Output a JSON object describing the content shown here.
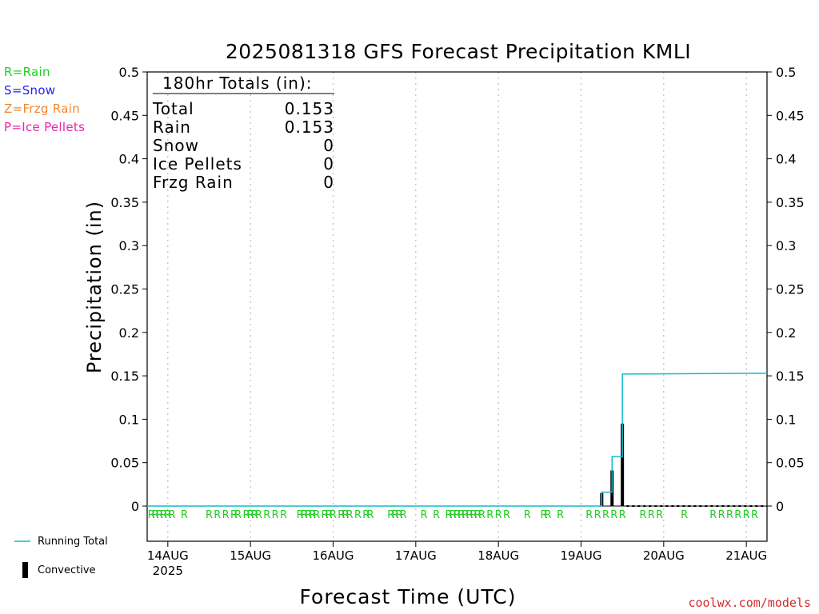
{
  "title": "2025081318 GFS Forecast Precipitation KMLI",
  "credit": "coolwx.com/models",
  "legend_keys": [
    {
      "text": "R=Rain",
      "color": "#22cc22"
    },
    {
      "text": "S=Snow",
      "color": "#2222ee"
    },
    {
      "text": "Z=Frzg Rain",
      "color": "#ee8833"
    },
    {
      "text": "P=Ice Pellets",
      "color": "#ee22aa"
    }
  ],
  "footer_legend": {
    "running_total": "Running Total",
    "convective": "Convective",
    "running_total_color": "#11bbcc",
    "convective_color": "#000000"
  },
  "totals_box": {
    "header": "180hr Totals (in):",
    "rows": [
      {
        "label": "Total",
        "value": "0.153"
      },
      {
        "label": "Rain",
        "value": "0.153"
      },
      {
        "label": "Snow",
        "value": "0"
      },
      {
        "label": "Ice Pellets",
        "value": "0"
      },
      {
        "label": "Frzg Rain",
        "value": "0"
      }
    ]
  },
  "chart_data": {
    "type": "bar",
    "title": "2025081318 GFS Forecast Precipitation KMLI",
    "xlabel": "Forecast Time (UTC)",
    "ylabel": "Precipitation (in)",
    "ylim": [
      0,
      0.5
    ],
    "y_ticks": [
      "0",
      "0.05",
      "0.1",
      "0.15",
      "0.2",
      "0.25",
      "0.3",
      "0.35",
      "0.4",
      "0.45",
      "0.5"
    ],
    "x_range_days": [
      "13AUG 18Z",
      "21AUG 06Z"
    ],
    "x_ticks": [
      {
        "label": "14AUG",
        "day": 14
      },
      {
        "label": "15AUG",
        "day": 15
      },
      {
        "label": "16AUG",
        "day": 16
      },
      {
        "label": "17AUG",
        "day": 17
      },
      {
        "label": "18AUG",
        "day": 18
      },
      {
        "label": "19AUG",
        "day": 19
      },
      {
        "label": "20AUG",
        "day": 20
      },
      {
        "label": "21AUG",
        "day": 21
      }
    ],
    "year_label": "2025",
    "grid": "vertical dotted at day ticks",
    "series": [
      {
        "name": "Convective",
        "kind": "bar",
        "points": [
          {
            "day": 19.25,
            "value": 0.015
          },
          {
            "day": 19.375,
            "value": 0.041
          },
          {
            "day": 19.5,
            "value": 0.095
          }
        ]
      },
      {
        "name": "Running Total",
        "kind": "step-line",
        "points": [
          {
            "day": 13.75,
            "value": 0
          },
          {
            "day": 19.25,
            "value": 0
          },
          {
            "day": 19.25,
            "value": 0.016
          },
          {
            "day": 19.375,
            "value": 0.016
          },
          {
            "day": 19.375,
            "value": 0.057
          },
          {
            "day": 19.5,
            "value": 0.057
          },
          {
            "day": 19.5,
            "value": 0.152
          },
          {
            "day": 21.25,
            "value": 0.153
          }
        ]
      }
    ],
    "precip_type_markers": {
      "symbol": "R",
      "days": [
        13.8,
        13.85,
        13.9,
        13.95,
        14.0,
        14.05,
        14.2,
        14.5,
        14.6,
        14.7,
        14.8,
        14.85,
        14.95,
        15.0,
        15.05,
        15.1,
        15.2,
        15.3,
        15.4,
        15.6,
        15.65,
        15.7,
        15.75,
        15.8,
        15.9,
        15.95,
        16.0,
        16.1,
        16.15,
        16.2,
        16.3,
        16.4,
        16.45,
        16.7,
        16.75,
        16.8,
        16.85,
        17.1,
        17.25,
        17.4,
        17.45,
        17.5,
        17.55,
        17.6,
        17.65,
        17.7,
        17.75,
        17.8,
        17.9,
        18.0,
        18.1,
        18.35,
        18.55,
        18.6,
        18.75,
        19.1,
        19.2,
        19.3,
        19.4,
        19.5,
        19.75,
        19.85,
        19.95,
        20.25,
        20.6,
        20.7,
        20.8,
        20.9,
        21.0,
        21.1
      ]
    }
  }
}
